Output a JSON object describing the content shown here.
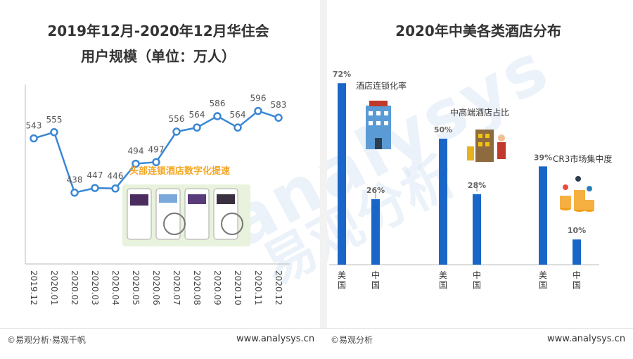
{
  "left": {
    "title_line1": "2019年12月-2020年12月华住会",
    "title_line2": "用户规模（单位：万人）",
    "callout": "头部连锁酒店数字化提速"
  },
  "right": {
    "title": "2020年中美各类酒店分布"
  },
  "footer": {
    "left_credit": "©易观分析·易观千帆",
    "left_site": "www.analysys.cn",
    "right_credit": "©易观分析",
    "right_site": "www.analysys.cn"
  },
  "watermark": {
    "latin": "analysys",
    "cn": "易观分析"
  },
  "colors": {
    "line": "#3a87d4",
    "bar": "#1a66c8",
    "accent": "#f5a623"
  },
  "chart_data": [
    {
      "type": "line",
      "title": "2019年12月-2020年12月华住会用户规模（单位：万人）",
      "x": [
        "2019.12",
        "2020.01",
        "2020.02",
        "2020.03",
        "2020.04",
        "2020.05",
        "2020.06",
        "2020.07",
        "2020.08",
        "2020.09",
        "2020.10",
        "2020.11",
        "2020.12"
      ],
      "series": [
        {
          "values": [
            543,
            555,
            438,
            447,
            446,
            494,
            497,
            556,
            564,
            586,
            564,
            596,
            583
          ]
        }
      ],
      "ylim": [
        300,
        680
      ],
      "grid": false
    },
    {
      "type": "bar",
      "title": "2020年中美各类酒店分布",
      "groups": [
        {
          "label": "酒店连锁化率",
          "bars": [
            {
              "country": "美国",
              "value": 72,
              "label": "72%"
            },
            {
              "country": "中国",
              "value": 26,
              "label": "26%"
            }
          ]
        },
        {
          "label": "中高端酒店占比",
          "bars": [
            {
              "country": "美国",
              "value": 50,
              "label": "50%"
            },
            {
              "country": "中国",
              "value": 28,
              "label": "28%"
            }
          ]
        },
        {
          "label": "CR3市场集中度",
          "bars": [
            {
              "country": "美国",
              "value": 39,
              "label": "39%"
            },
            {
              "country": "中国",
              "value": 10,
              "label": "10%"
            }
          ]
        }
      ],
      "ylim": [
        0,
        80
      ]
    }
  ]
}
